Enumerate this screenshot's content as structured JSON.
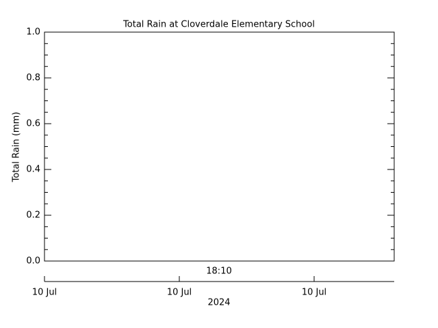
{
  "chart_data": {
    "type": "line",
    "title": "Total Rain at Cloverdale Elementary School",
    "y_label": "Total Rain (mm)",
    "series": [],
    "ylim": [
      0,
      1
    ],
    "yticks": [
      {
        "value": 0,
        "label": "0.0"
      },
      {
        "value": 0.2,
        "label": "0.2"
      },
      {
        "value": 0.4,
        "label": "0.4"
      },
      {
        "value": 0.6,
        "label": "0.6"
      },
      {
        "value": 0.8,
        "label": "0.8"
      },
      {
        "value": 1,
        "label": "1.0"
      }
    ],
    "y_minor_ticks": [
      0.05,
      0.1,
      0.15,
      0.25,
      0.3,
      0.35,
      0.45,
      0.5,
      0.55,
      0.65,
      0.7,
      0.75,
      0.85,
      0.9,
      0.95
    ],
    "time_label": "18:10",
    "x_tick_labels": [
      "10 Jul",
      "10 Jul",
      "10 Jul"
    ],
    "year_label": "2024"
  }
}
